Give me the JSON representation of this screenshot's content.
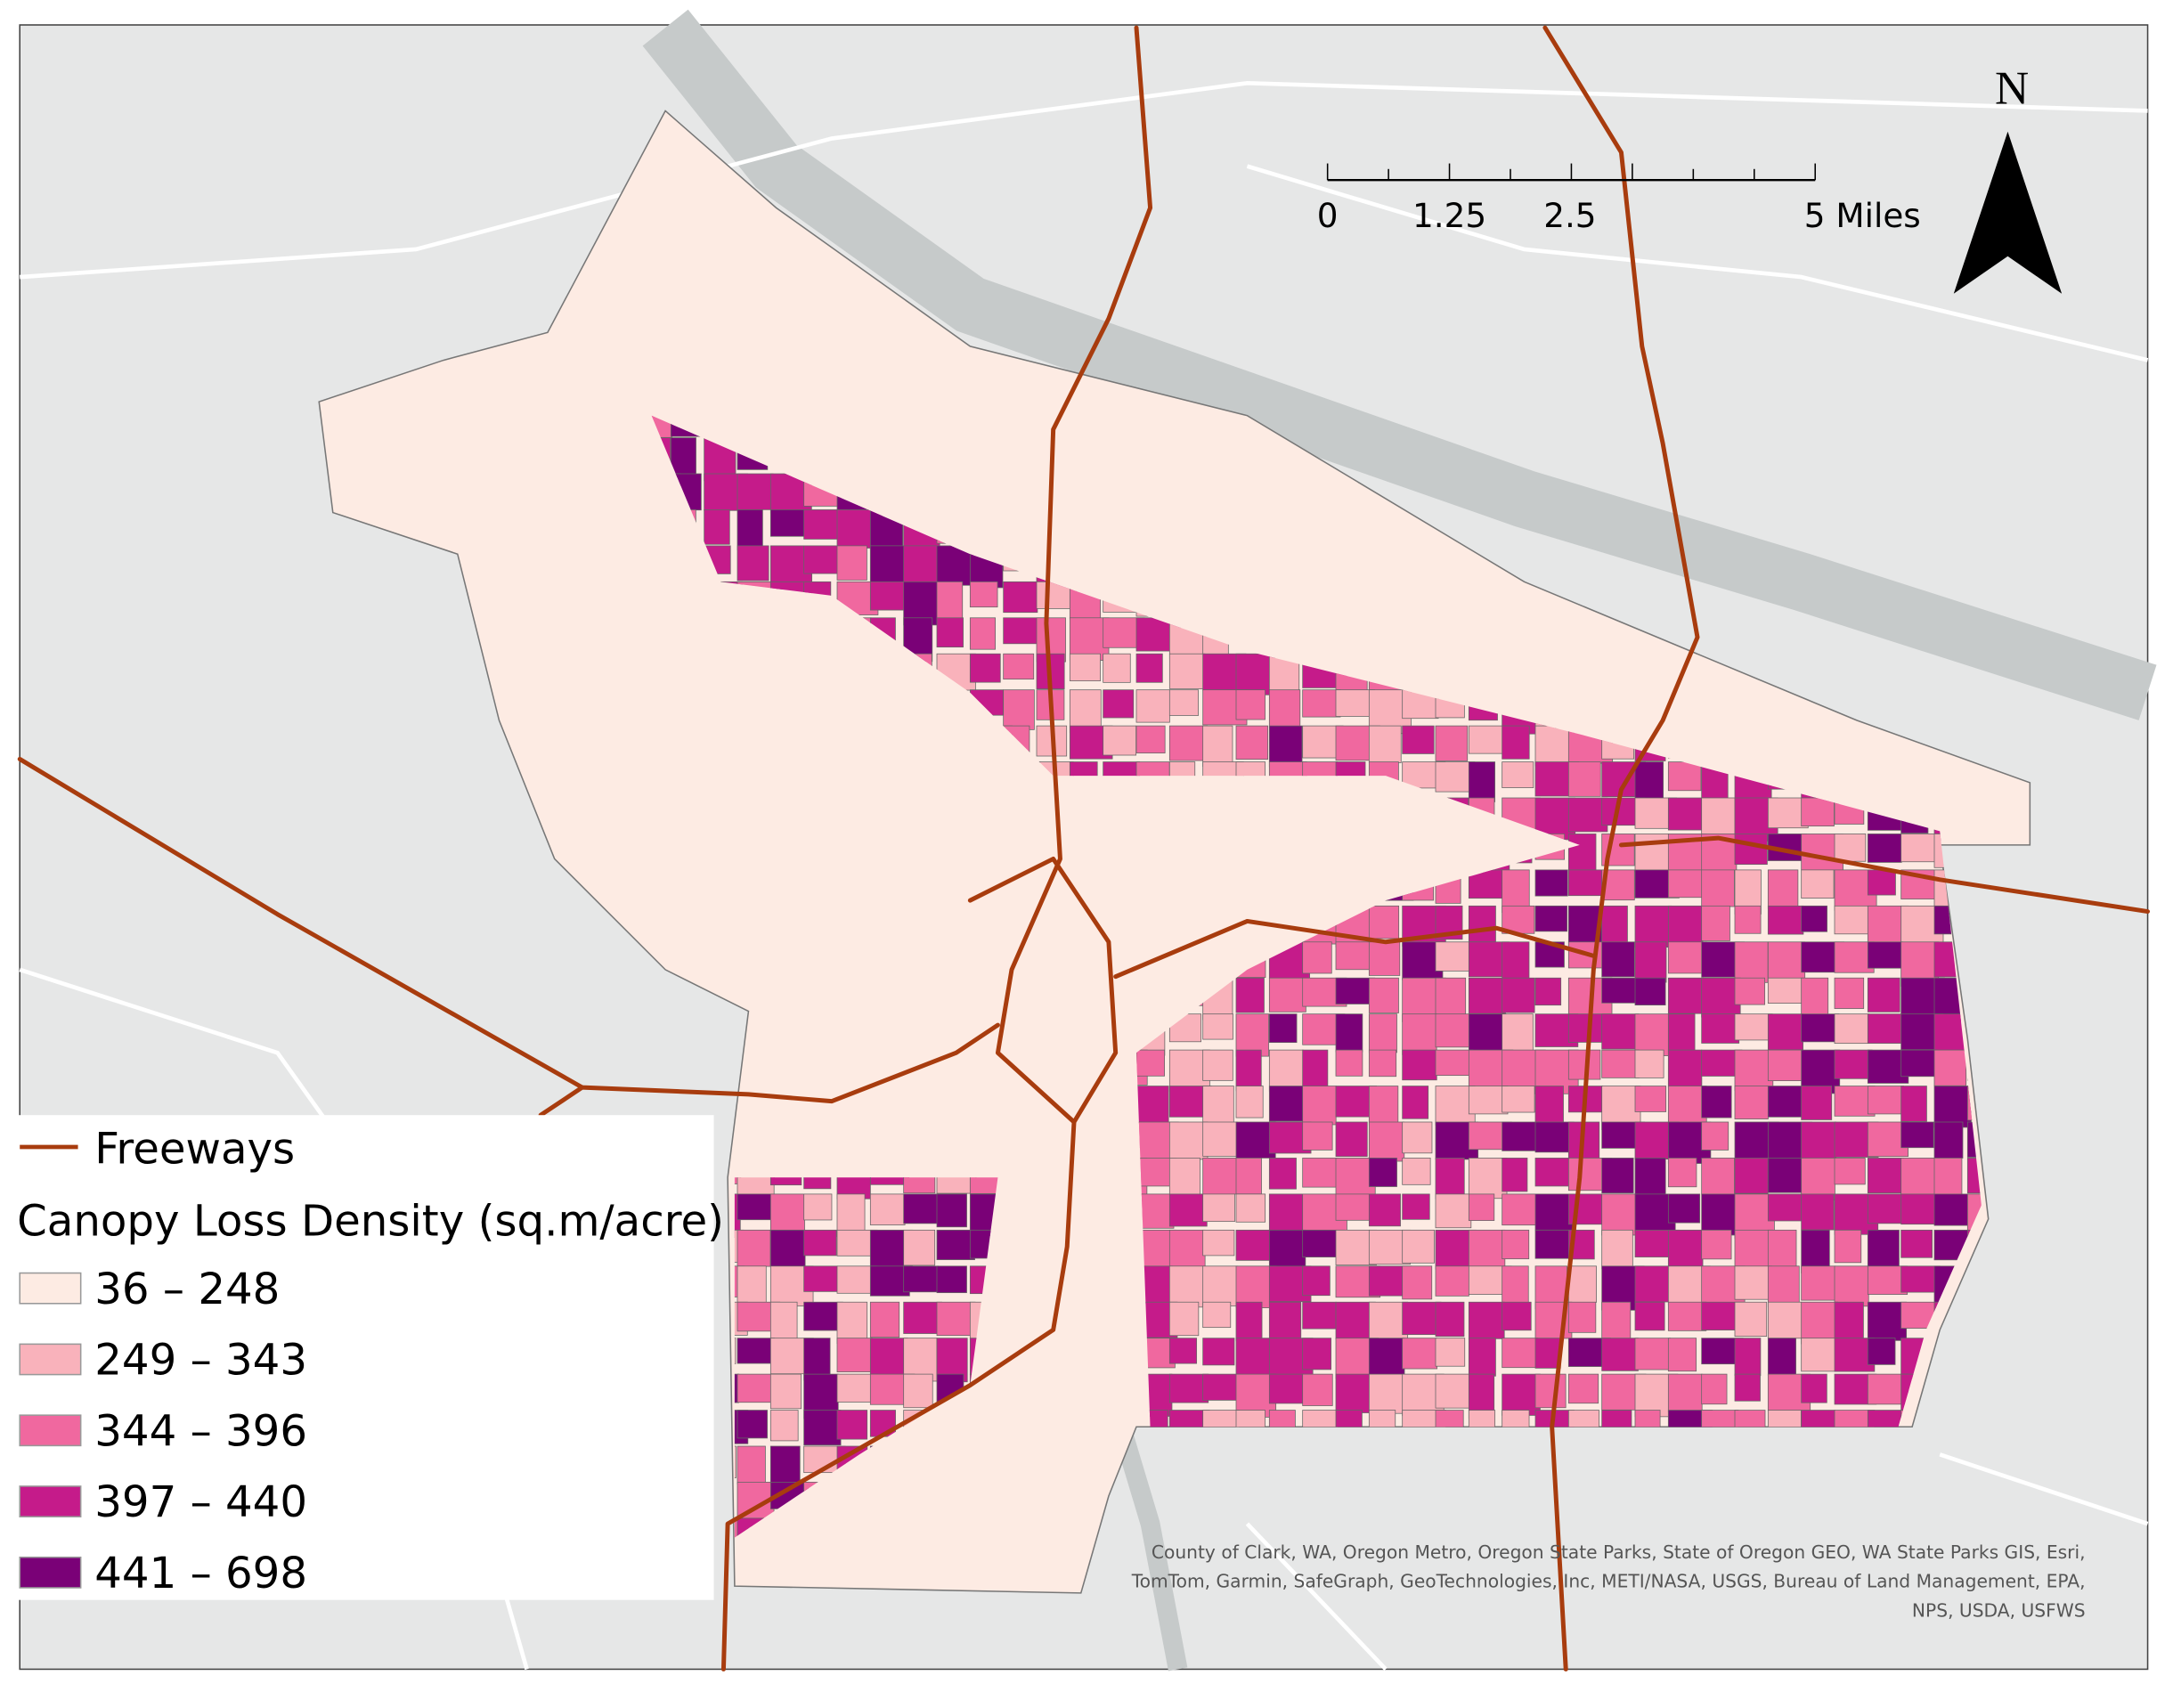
{
  "legend": {
    "freeways": "Freeways",
    "freeway_color": "#a83c0e",
    "title": "Canopy Loss Density (sq.m/acre)",
    "classes": [
      {
        "label": "36 – 248",
        "color": "#fdebe3"
      },
      {
        "label": "249 – 343",
        "color": "#f9b2bb"
      },
      {
        "label": "344 – 396",
        "color": "#f0689f"
      },
      {
        "label": "397 – 440",
        "color": "#c51b8a"
      },
      {
        "label": "441 – 698",
        "color": "#7a0177"
      }
    ]
  },
  "scale_bar": {
    "labels": [
      "0",
      "1.25",
      "2.5",
      "5 Miles"
    ]
  },
  "north_arrow": "N",
  "attribution": [
    "County of Clark, WA, Oregon Metro, Oregon State Parks, State of Oregon GEO, WA State Parks GIS, Esri,",
    "TomTom, Garmin, SafeGraph, GeoTechnologies, Inc, METI/NASA, USGS, Bureau of Land Management, EPA,",
    "NPS, USDA, USFWS"
  ]
}
